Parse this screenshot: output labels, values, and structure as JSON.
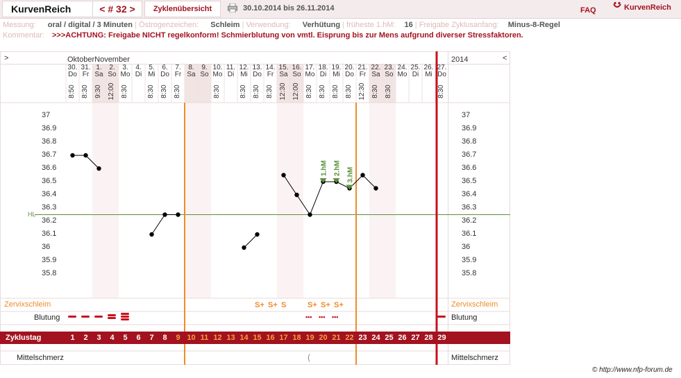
{
  "header": {
    "logo": "KurvenReich",
    "cycle_nav": "< # 32 >",
    "overview_tab": "Zyklenübersicht",
    "date_range": "30.10.2014 bis 26.11.2014",
    "faq": "FAQ",
    "brand": "KurvenReich"
  },
  "meta": {
    "messung_label": "Messung:",
    "messung_value": "oral / digital / 3 Minuten",
    "oestrogen_label": "Östrogenzeichen:",
    "oestrogen_value": "Schleim",
    "verwendung_label": "Verwendung:",
    "verwendung_value": "Verhütung",
    "hm_label": "früheste 1.hM:",
    "hm_value": "16",
    "freigabe_label": "Freigabe Zyklusanfang:",
    "freigabe_value": "Minus-8-Regel",
    "kommentar_label": "Kommentar:",
    "kommentar_value": ">>>ACHTUNG: Freigabe NICHT regelkonform! Schmierblutung von vmtl. Eisprung bis zur Mens aufgrund diverser Stressfaktoren."
  },
  "chart_header": {
    "left_toggle": ">",
    "months": "OktoberNovember",
    "year": "2014",
    "right_toggle": "<"
  },
  "days": [
    {
      "num": "30.",
      "wd": "Do",
      "time": "8:50",
      "we": false
    },
    {
      "num": "31.",
      "wd": "Fr",
      "time": "8:30",
      "we": false
    },
    {
      "num": "1.",
      "wd": "Sa",
      "time": "9:30",
      "we": true
    },
    {
      "num": "2.",
      "wd": "So",
      "time": "12:00",
      "we": true
    },
    {
      "num": "3.",
      "wd": "Mo",
      "time": "8:30",
      "we": false
    },
    {
      "num": "4.",
      "wd": "Di",
      "time": "",
      "we": false
    },
    {
      "num": "5.",
      "wd": "Mi",
      "time": "8:30",
      "we": false
    },
    {
      "num": "6.",
      "wd": "Do",
      "time": "8:30",
      "we": false
    },
    {
      "num": "7.",
      "wd": "Fr",
      "time": "8:30",
      "we": false
    },
    {
      "num": "8.",
      "wd": "Sa",
      "time": "",
      "we": true
    },
    {
      "num": "9.",
      "wd": "So",
      "time": "",
      "we": true
    },
    {
      "num": "10.",
      "wd": "Mo",
      "time": "8:30",
      "we": false
    },
    {
      "num": "11.",
      "wd": "Di",
      "time": "",
      "we": false
    },
    {
      "num": "12.",
      "wd": "Mi",
      "time": "8:30",
      "we": false
    },
    {
      "num": "13.",
      "wd": "Do",
      "time": "8:30",
      "we": false
    },
    {
      "num": "14.",
      "wd": "Fr",
      "time": "8:30",
      "we": false
    },
    {
      "num": "15.",
      "wd": "Sa",
      "time": "12:30",
      "we": true
    },
    {
      "num": "16.",
      "wd": "So",
      "time": "12:00",
      "we": true
    },
    {
      "num": "17.",
      "wd": "Mo",
      "time": "8:30",
      "we": false
    },
    {
      "num": "18.",
      "wd": "Di",
      "time": "8:30",
      "we": false
    },
    {
      "num": "19.",
      "wd": "Mi",
      "time": "8:30",
      "we": false
    },
    {
      "num": "20.",
      "wd": "Do",
      "time": "8:30",
      "we": false
    },
    {
      "num": "21.",
      "wd": "Fr",
      "time": "12:30",
      "we": false
    },
    {
      "num": "22.",
      "wd": "Sa",
      "time": "8:30",
      "we": true
    },
    {
      "num": "23.",
      "wd": "So",
      "time": "8:30",
      "we": true
    },
    {
      "num": "24.",
      "wd": "Mo",
      "time": "",
      "we": false
    },
    {
      "num": "25.",
      "wd": "Di",
      "time": "",
      "we": false
    },
    {
      "num": "26.",
      "wd": "Mi",
      "time": "",
      "we": false
    },
    {
      "num": "27.",
      "wd": "Do",
      "time": "8:30",
      "we": false
    }
  ],
  "chart_data": {
    "type": "line",
    "ylim": [
      35.7,
      37.1
    ],
    "yticks": [
      "37",
      "36.9",
      "36.8",
      "36.7",
      "36.6",
      "36.5",
      "36.4",
      "36.3",
      "36.2",
      "36.1",
      "36",
      "35.9",
      "35.8"
    ],
    "hl_label": "HL",
    "hl_value": 36.25,
    "temperature": [
      36.7,
      36.7,
      36.6,
      null,
      null,
      null,
      36.1,
      36.25,
      36.25,
      null,
      null,
      null,
      null,
      36.0,
      36.1,
      null,
      36.55,
      36.4,
      36.25,
      36.5,
      36.5,
      36.45,
      36.55,
      36.45,
      null,
      null,
      null,
      null,
      null
    ],
    "segments": [
      [
        0,
        2
      ],
      [
        6,
        8
      ],
      [
        13,
        14
      ],
      [
        16,
        23
      ]
    ],
    "markers": [
      {
        "day": 19,
        "label": "1.hM",
        "value": 36.5
      },
      {
        "day": 20,
        "label": "2.hM",
        "value": 36.5
      },
      {
        "day": 21,
        "label": "3.hM",
        "value": 36.45
      }
    ],
    "vlines_day_after": [
      8,
      21
    ],
    "cycle_end_day": 28
  },
  "rows": {
    "zervix_label": "Zervixschleim",
    "blutung_label": "Blutung",
    "zyklustag_label": "Zyklustag",
    "mittelschmerz_label": "Mittelschmerz",
    "zervix": [
      "",
      "",
      "",
      "",
      "",
      "",
      "",
      "",
      "",
      "",
      "",
      "",
      "",
      "",
      "S+",
      "S+",
      "S",
      "",
      "S+",
      "S+",
      "S+",
      "",
      "",
      "",
      "",
      "",
      "",
      "",
      ""
    ],
    "blutung": [
      "heavy",
      "heavy",
      "heavy",
      "double",
      "triple",
      "",
      "",
      "",
      "",
      "",
      "",
      "",
      "",
      "",
      "",
      "",
      "",
      "",
      "dots",
      "dots",
      "dots",
      "",
      "",
      "",
      "",
      "",
      "",
      "",
      "single"
    ],
    "zyklustag": [
      "1",
      "2",
      "3",
      "4",
      "5",
      "6",
      "7",
      "8",
      "9",
      "10",
      "11",
      "12",
      "13",
      "14",
      "15",
      "16",
      "17",
      "18",
      "19",
      "20",
      "21",
      "22",
      "23",
      "24",
      "25",
      "26",
      "27",
      "28",
      "29"
    ],
    "mittelschmerz": [
      "",
      "",
      "",
      "",
      "",
      "",
      "",
      "",
      "",
      "",
      "",
      "",
      "",
      "",
      "",
      "",
      "",
      "",
      "(",
      "",
      "",
      "",
      "",
      "",
      "",
      "",
      "",
      "",
      ""
    ]
  },
  "colors": {
    "brand_red": "#a3121f",
    "orange": "#f08a28",
    "green": "#5a8f3a",
    "cycle_bar": "#a3121f"
  },
  "copyright": "© http://www.nfp-forum.de"
}
